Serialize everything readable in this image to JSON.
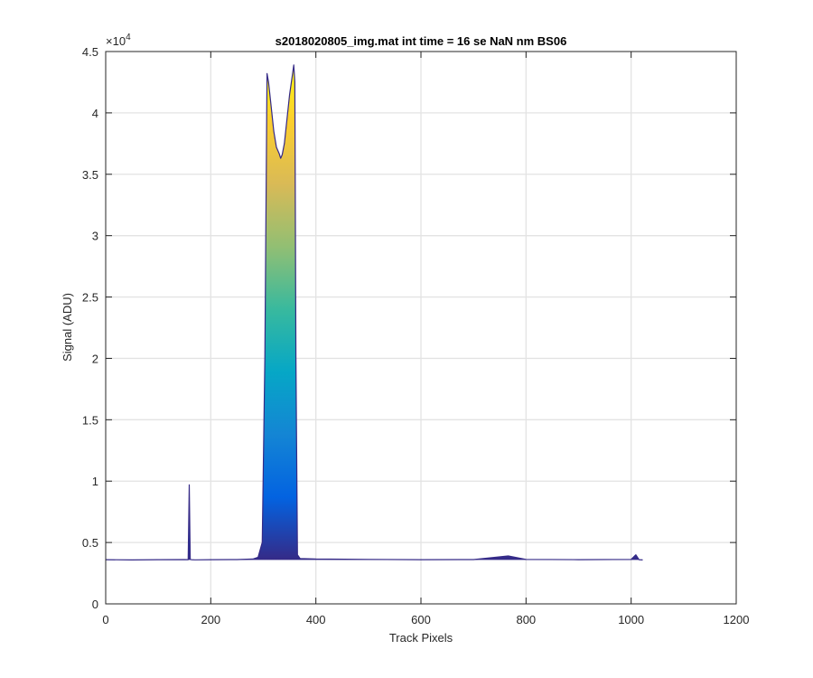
{
  "chart_data": {
    "type": "area",
    "title": "s2018020805_img.mat int time = 16 se  NaN nm BS06",
    "xlabel": "Track Pixels",
    "ylabel": "Signal (ADU)",
    "xlim": [
      0,
      1200
    ],
    "ylim": [
      0,
      45000
    ],
    "y_exponent_base": "×10",
    "y_exponent_power": "4",
    "x_ticks": [
      0,
      200,
      400,
      600,
      800,
      1000,
      1200
    ],
    "x_tick_labels": [
      "0",
      "200",
      "400",
      "600",
      "800",
      "1000",
      "1200"
    ],
    "y_ticks": [
      0,
      5000,
      10000,
      15000,
      20000,
      25000,
      30000,
      35000,
      40000,
      45000
    ],
    "y_tick_labels": [
      "0",
      "0.5",
      "1",
      "1.5",
      "2",
      "2.5",
      "3",
      "3.5",
      "4",
      "4.5"
    ],
    "grid": true,
    "colormap": [
      "#352a87",
      "#0363e1",
      "#1485d4",
      "#06a7c6",
      "#38b99e",
      "#92bf73",
      "#d9ba56",
      "#fcce2e",
      "#f9fb0e"
    ],
    "axis_color": "#262626",
    "grid_color": "#e3e3e3",
    "series": [
      {
        "x": [
          0,
          50,
          100,
          150,
          157,
          159,
          161,
          163,
          170,
          200,
          250,
          280,
          290,
          298,
          303,
          307,
          310,
          315,
          320,
          325,
          330,
          333,
          336,
          340,
          345,
          350,
          355,
          358,
          360,
          362,
          365,
          370,
          400,
          500,
          600,
          700,
          766,
          800,
          900,
          1000,
          1009,
          1015,
          1022
        ],
        "y": [
          3600,
          3580,
          3600,
          3610,
          3600,
          9700,
          3620,
          3600,
          3590,
          3600,
          3610,
          3650,
          3800,
          5000,
          20000,
          43200,
          42500,
          40500,
          38500,
          37200,
          36700,
          36300,
          36600,
          37500,
          39500,
          41500,
          43000,
          43900,
          42500,
          20000,
          4000,
          3700,
          3650,
          3620,
          3600,
          3610,
          3900,
          3620,
          3600,
          3620,
          4000,
          3600,
          3580
        ]
      }
    ]
  }
}
